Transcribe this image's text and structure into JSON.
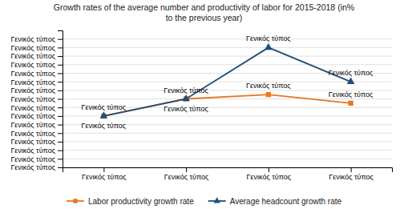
{
  "chart_data": {
    "type": "line",
    "title": "Growth rates of the average number and productivity of labor for 2015-2018  (in%\nto the previous year)",
    "categories": [
      "Γενικός τύπος",
      "Γενικός τύπος",
      "Γενικός τύπος",
      "Γενικός τύπος"
    ],
    "series": [
      {
        "name": "Labor productivity growth rate",
        "color": "#E87722",
        "marker": "square",
        "values": [
          6,
          8,
          8.5,
          7.5
        ],
        "value_labels": [
          "Γενικός τύπος",
          "Γενικός τύπος",
          "Γενικός τύπος",
          "Γενικός τύπος"
        ]
      },
      {
        "name": "Average headcount growth rate",
        "color": "#1F4E79",
        "marker": "triangle",
        "values": [
          6,
          8,
          14,
          10
        ],
        "value_labels": [
          "Γενικός τύπος",
          "Γενικός τύπος",
          "Γενικός τύπος",
          "Γενικός τύπος"
        ]
      }
    ],
    "ylim": [
      0,
      16
    ],
    "yticks": [
      {
        "value": 0,
        "label": "Γενικός τύπος"
      },
      {
        "value": 1,
        "label": "Γενικός τύπος"
      },
      {
        "value": 2,
        "label": "Γενικός τύπος"
      },
      {
        "value": 3,
        "label": "Γενικός τύπος"
      },
      {
        "value": 4,
        "label": "Γενικός τύπος"
      },
      {
        "value": 5,
        "label": "Γενικός τύπος"
      },
      {
        "value": 6,
        "label": "Γενικός τύπος"
      },
      {
        "value": 7,
        "label": "Γενικός τύπος"
      },
      {
        "value": 8,
        "label": "Γενικός τύπος"
      },
      {
        "value": 9,
        "label": "Γενικός τύπος"
      },
      {
        "value": 10,
        "label": "Γενικός τύπος"
      },
      {
        "value": 11,
        "label": "Γενικός τύπος"
      },
      {
        "value": 12,
        "label": "Γενικός τύπος"
      },
      {
        "value": 13,
        "label": "Γενικός τύπος"
      },
      {
        "value": 14,
        "label": "Γενικός τύπος"
      },
      {
        "value": 15,
        "label": "Γενικός τύπος"
      }
    ],
    "grid": true,
    "legend": "bottom",
    "data_labels": true
  }
}
